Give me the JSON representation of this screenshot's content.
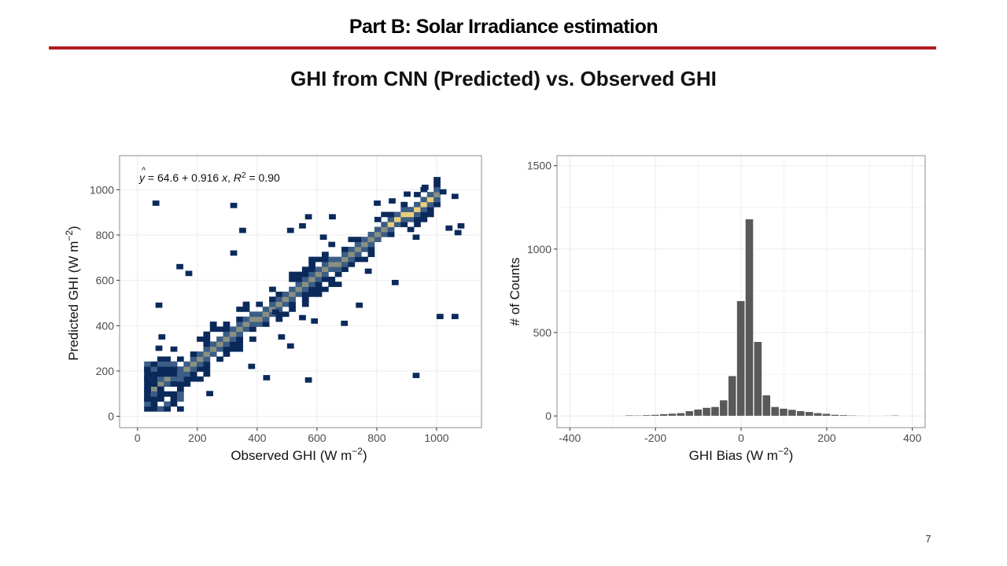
{
  "slide": {
    "title": "Part B: Solar Irradiance estimation",
    "subtitle": "GHI from CNN (Predicted) vs. Observed GHI",
    "page_number": "7"
  },
  "colors": {
    "title_rule": "#b01e23",
    "bin_low": "#0b2a5b",
    "bin_mid": "#3b5d86",
    "bin_high": "#e8cf7a",
    "histogram_bar": "#595959",
    "panel_border": "#8c8c8c",
    "grid": "#ebebeb"
  },
  "chart_data": [
    {
      "type": "heatmap",
      "subtype": "2d-binned scatter",
      "title": "",
      "xlabel": "Observed GHI (W m",
      "xlabel_exp": "−2",
      "xlabel_close": ")",
      "ylabel": "Predicted GHI (W m",
      "ylabel_exp": "−2",
      "ylabel_close": ")",
      "xlim": [
        -60,
        1150
      ],
      "ylim": [
        -50,
        1150
      ],
      "xticks": [
        0,
        200,
        400,
        600,
        800,
        1000
      ],
      "yticks": [
        0,
        200,
        400,
        600,
        800,
        1000
      ],
      "grid": true,
      "annotation": {
        "yhat": "y",
        "equation": " = 64.6 + 0.916 ",
        "xvar": "x",
        "comma": ", ",
        "r": "R",
        "r_exp": "2",
        "r_value": " = 0.90"
      },
      "regression": {
        "intercept": 64.6,
        "slope": 0.916,
        "r2": 0.9
      },
      "bin_width": 22,
      "outlier_bins": [
        [
          50,
          930
        ],
        [
          310,
          920
        ],
        [
          450,
          450
        ],
        [
          540,
          425
        ],
        [
          580,
          410
        ],
        [
          920,
          170
        ],
        [
          1000,
          430
        ],
        [
          1050,
          430
        ],
        [
          1070,
          830
        ],
        [
          1060,
          800
        ],
        [
          1030,
          820
        ],
        [
          1050,
          960
        ],
        [
          1010,
          980
        ],
        [
          950,
          1000
        ],
        [
          890,
          970
        ],
        [
          840,
          940
        ],
        [
          790,
          930
        ],
        [
          640,
          870
        ],
        [
          560,
          870
        ],
        [
          540,
          830
        ],
        [
          610,
          780
        ],
        [
          500,
          810
        ],
        [
          340,
          810
        ],
        [
          310,
          710
        ],
        [
          130,
          650
        ],
        [
          60,
          480
        ],
        [
          70,
          340
        ],
        [
          60,
          290
        ],
        [
          160,
          620
        ],
        [
          370,
          210
        ],
        [
          420,
          160
        ],
        [
          230,
          90
        ],
        [
          470,
          340
        ],
        [
          500,
          300
        ],
        [
          560,
          150
        ],
        [
          730,
          480
        ],
        [
          680,
          400
        ],
        [
          760,
          630
        ],
        [
          850,
          580
        ],
        [
          920,
          780
        ]
      ]
    },
    {
      "type": "bar",
      "subtype": "histogram",
      "title": "",
      "xlabel": "GHI Bias (W m",
      "xlabel_exp": "−2",
      "xlabel_close": ")",
      "ylabel": "# of Counts",
      "xlim": [
        -430,
        430
      ],
      "ylim": [
        -70,
        1560
      ],
      "xticks": [
        -400,
        -200,
        0,
        200,
        400
      ],
      "yticks": [
        0,
        500,
        1000,
        1500
      ],
      "grid": true,
      "bin_width": 20,
      "bin_centers": [
        -260,
        -240,
        -220,
        -200,
        -180,
        -160,
        -140,
        -120,
        -100,
        -80,
        -60,
        -40,
        -20,
        0,
        20,
        40,
        60,
        80,
        100,
        120,
        140,
        160,
        180,
        200,
        220,
        240,
        260,
        280,
        340,
        360
      ],
      "counts": [
        5,
        4,
        6,
        8,
        12,
        15,
        18,
        30,
        40,
        50,
        55,
        95,
        240,
        690,
        1180,
        445,
        125,
        55,
        45,
        38,
        30,
        25,
        18,
        14,
        8,
        6,
        4,
        3,
        3,
        4
      ]
    }
  ]
}
